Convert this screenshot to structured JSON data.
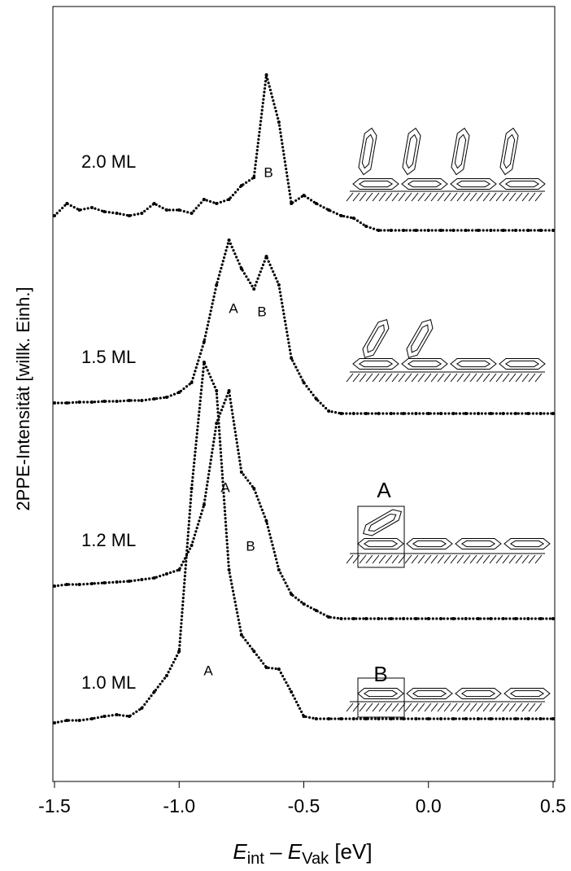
{
  "chart_data": {
    "type": "line",
    "ylabel": "2PPE-Intensität  [willk.  Einh.]",
    "xlabel": [
      "E",
      "int",
      " – ",
      "E",
      "Vak",
      " [eV]"
    ],
    "x": [
      -1.5,
      -1.45,
      -1.4,
      -1.35,
      -1.3,
      -1.25,
      -1.2,
      -1.15,
      -1.1,
      -1.05,
      -1.0,
      -0.95,
      -0.9,
      -0.85,
      -0.8,
      -0.75,
      -0.7,
      -0.65,
      -0.6,
      -0.55,
      -0.5,
      -0.45,
      -0.4,
      -0.35,
      -0.3,
      -0.25,
      -0.2,
      -0.15,
      -0.1,
      -0.05,
      0.0,
      0.05,
      0.1,
      0.15,
      0.2,
      0.25,
      0.3,
      0.35,
      0.4,
      0.45,
      0.5
    ],
    "xlim": [
      -1.5,
      0.5
    ],
    "xticks": [
      -1.5,
      {
        "value": -1.0,
        "label": "-1.0"
      },
      -0.5,
      {
        "value": 0.0,
        "label": "0.0"
      },
      0.5
    ],
    "ylim": [
      0,
      952
    ],
    "color": "#000000",
    "series": [
      {
        "name": "2.0 ML",
        "values": [
          695,
          710,
          702,
          705,
          700,
          698,
          695,
          698,
          710,
          702,
          702,
          698,
          715,
          710,
          715,
          732,
          742,
          868,
          810,
          710,
          720,
          710,
          702,
          695,
          692,
          682,
          677,
          677,
          677,
          677,
          677,
          677,
          677,
          677,
          677,
          677,
          677,
          677,
          677,
          677,
          677
        ]
      },
      {
        "name": "1.5 ML",
        "values": [
          465,
          465,
          466,
          466,
          467,
          467,
          468,
          468,
          470,
          472,
          478,
          490,
          540,
          610,
          665,
          630,
          605,
          645,
          610,
          520,
          490,
          470,
          455,
          452,
          452,
          452,
          452,
          452,
          452,
          452,
          452,
          452,
          452,
          452,
          452,
          452,
          452,
          452,
          452,
          452,
          452
        ]
      },
      {
        "name": "1.2 ML",
        "values": [
          240,
          242,
          242,
          243,
          244,
          245,
          246,
          248,
          250,
          255,
          260,
          290,
          340,
          440,
          480,
          380,
          360,
          320,
          260,
          230,
          218,
          210,
          202,
          200,
          200,
          200,
          200,
          200,
          200,
          200,
          200,
          200,
          200,
          200,
          200,
          200,
          200,
          200,
          200,
          200,
          200
        ]
      },
      {
        "name": "1.0 ML",
        "values": [
          72,
          75,
          75,
          77,
          80,
          82,
          80,
          90,
          110,
          130,
          160,
          360,
          515,
          480,
          260,
          180,
          160,
          140,
          138,
          110,
          80,
          77,
          77,
          77,
          77,
          77,
          77,
          77,
          77,
          77,
          77,
          77,
          77,
          77,
          77,
          77,
          77,
          77,
          77,
          77,
          77
        ]
      }
    ],
    "annotations": [
      "B",
      "A",
      "B",
      "A",
      "B",
      "A",
      "A",
      "B"
    ]
  }
}
